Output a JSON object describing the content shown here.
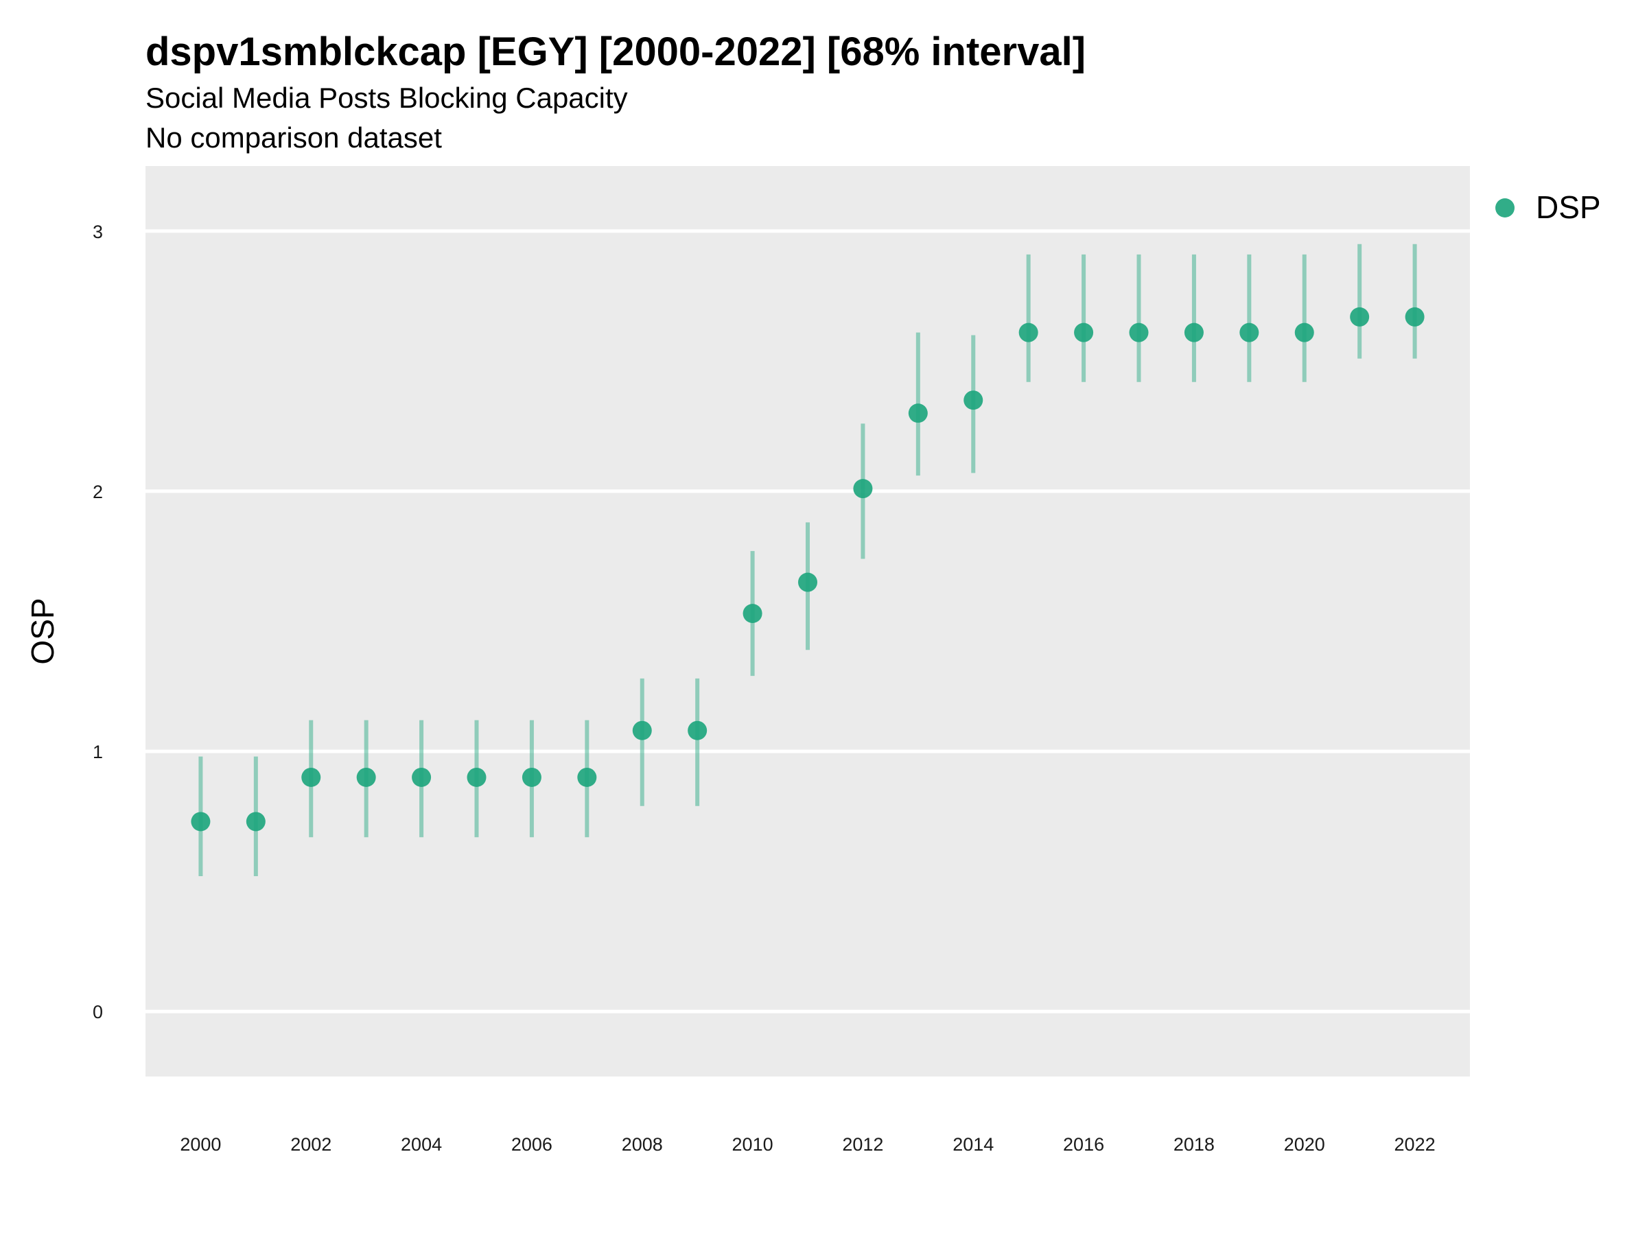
{
  "chart_data": {
    "type": "scatter",
    "title": "dspv1smblckcap [EGY] [2000-2022] [68% interval]",
    "subtitle": "Social Media Posts Blocking Capacity",
    "caption": "No comparison dataset",
    "xlabel": "",
    "ylabel": "OSP",
    "xlim": [
      1999,
      2023
    ],
    "ylim": [
      -0.25,
      3.25
    ],
    "x_ticks": [
      "2000",
      "2002",
      "2004",
      "2006",
      "2008",
      "2010",
      "2012",
      "2014",
      "2016",
      "2018",
      "2020",
      "2022"
    ],
    "y_ticks": [
      "0",
      "1",
      "2",
      "3"
    ],
    "grid": true,
    "legend_position": "right",
    "series": [
      {
        "name": "DSP",
        "color": "#1fa67e",
        "x": [
          2000,
          2001,
          2002,
          2003,
          2004,
          2005,
          2006,
          2007,
          2008,
          2009,
          2010,
          2011,
          2012,
          2013,
          2014,
          2015,
          2016,
          2017,
          2018,
          2019,
          2020,
          2021,
          2022
        ],
        "values": [
          0.73,
          0.73,
          0.9,
          0.9,
          0.9,
          0.9,
          0.9,
          0.9,
          1.08,
          1.08,
          1.53,
          1.65,
          2.01,
          2.3,
          2.35,
          2.61,
          2.61,
          2.61,
          2.61,
          2.61,
          2.61,
          2.67,
          2.67
        ],
        "lower": [
          0.52,
          0.52,
          0.67,
          0.67,
          0.67,
          0.67,
          0.67,
          0.67,
          0.79,
          0.79,
          1.29,
          1.39,
          1.74,
          2.06,
          2.07,
          2.42,
          2.42,
          2.42,
          2.42,
          2.42,
          2.42,
          2.51,
          2.51
        ],
        "upper": [
          0.98,
          0.98,
          1.12,
          1.12,
          1.12,
          1.12,
          1.12,
          1.12,
          1.28,
          1.28,
          1.77,
          1.88,
          2.26,
          2.61,
          2.6,
          2.91,
          2.91,
          2.91,
          2.91,
          2.91,
          2.91,
          2.95,
          2.95
        ]
      }
    ]
  }
}
